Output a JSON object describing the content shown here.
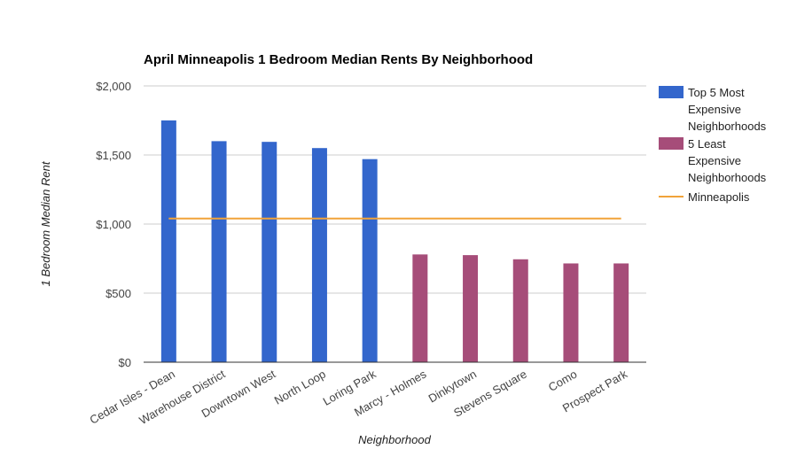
{
  "chart_data": {
    "type": "bar",
    "title": "April Minneapolis 1 Bedroom Median Rents By Neighborhood",
    "xlabel": "Neighborhood",
    "ylabel": "1 Bedroom Median Rent",
    "ylim": [
      0,
      2000
    ],
    "yticks": [
      {
        "value": 0,
        "label": "$0"
      },
      {
        "value": 500,
        "label": "$500"
      },
      {
        "value": 1000,
        "label": "$1,000"
      },
      {
        "value": 1500,
        "label": "$1,500"
      },
      {
        "value": 2000,
        "label": "$2,000"
      }
    ],
    "grid": true,
    "legend_position": "right",
    "categories": [
      "Cedar Isles - Dean",
      "Warehouse District",
      "Downtown West",
      "North Loop",
      "Loring Park",
      "Marcy - Holmes",
      "Dinkytown",
      "Stevens Square",
      "Como",
      "Prospect Park"
    ],
    "series": [
      {
        "name": "Top 5 Most Expensive Neighborhoods",
        "type": "bar",
        "color": "#3366cc",
        "values": [
          1750,
          1600,
          1595,
          1550,
          1470,
          null,
          null,
          null,
          null,
          null
        ]
      },
      {
        "name": "5 Least Expensive Neighborhoods",
        "type": "bar",
        "color": "#a64d79",
        "values": [
          null,
          null,
          null,
          null,
          null,
          780,
          775,
          745,
          715,
          715
        ]
      },
      {
        "name": "Minneapolis",
        "type": "line",
        "color": "#f1a33a",
        "values": [
          1040,
          1040,
          1040,
          1040,
          1040,
          1040,
          1040,
          1040,
          1040,
          1040
        ]
      }
    ]
  }
}
